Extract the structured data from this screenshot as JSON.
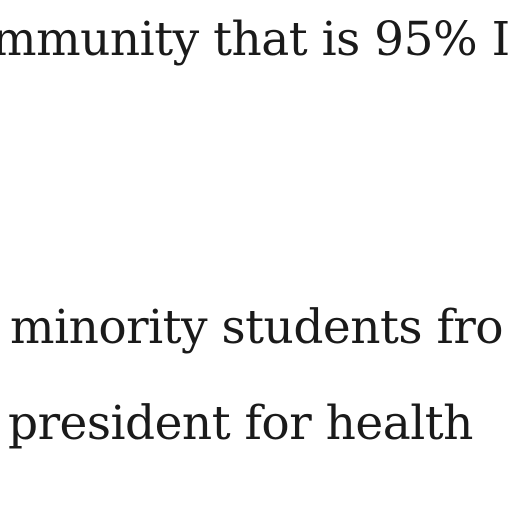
{
  "document": {
    "lines": [
      "mmunity that is 95% I",
      " minority students fro",
      " president for health"
    ]
  }
}
